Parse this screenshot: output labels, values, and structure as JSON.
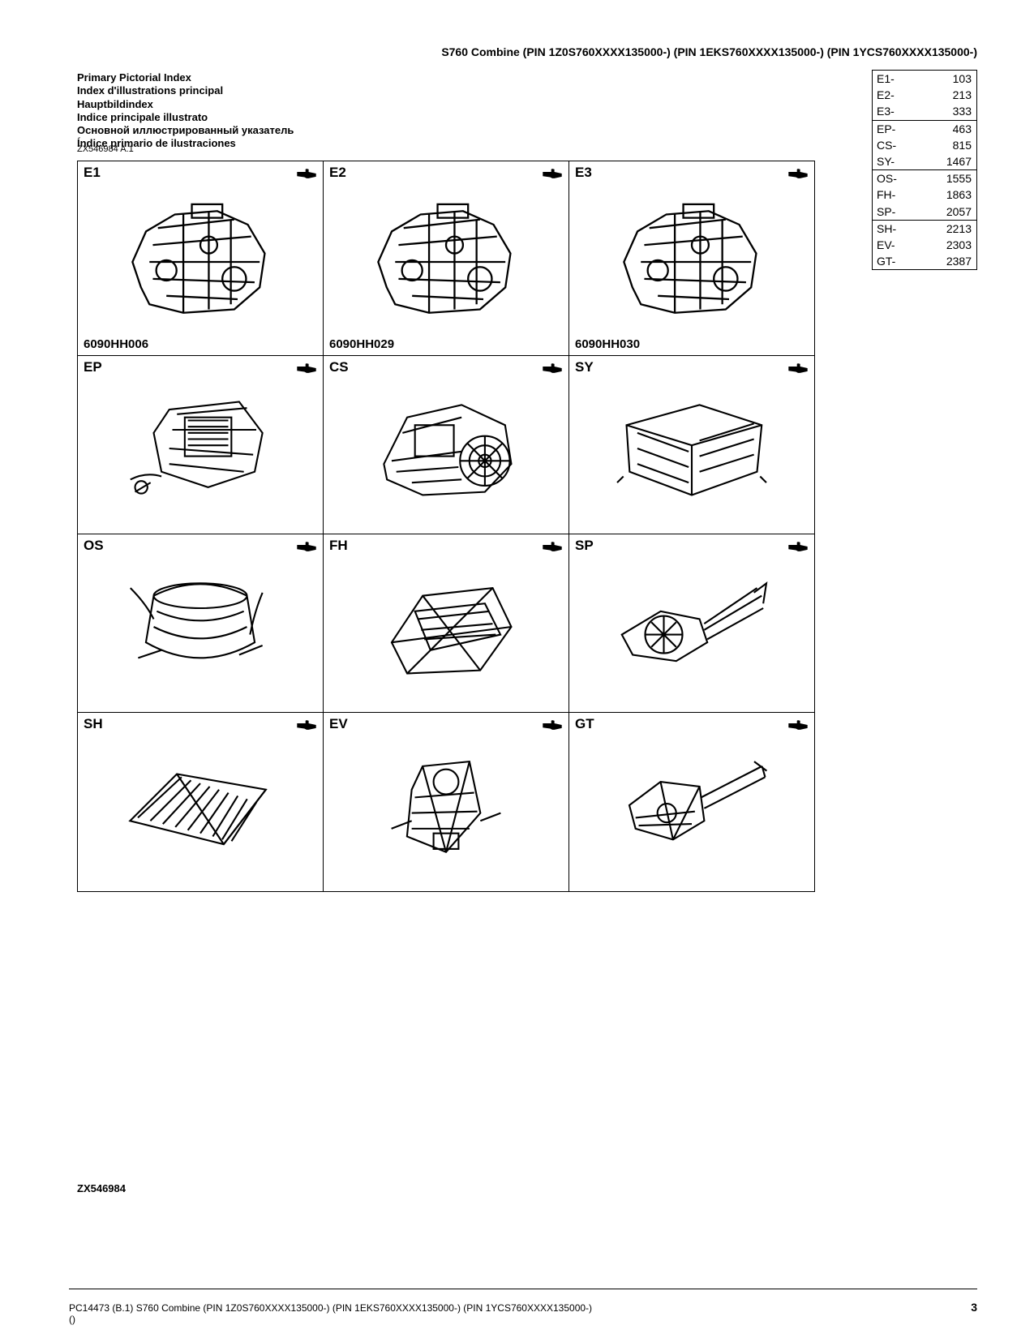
{
  "header": {
    "title": "S760 Combine (PIN 1Z0S760XXXX135000-) (PIN 1EKS760XXXX135000-) (PIN 1YCS760XXXX135000-)"
  },
  "index_titles": [
    "Primary Pictorial Index",
    "Index d'illustrations principal",
    "Hauptbildindex",
    "Indice principale illustrato",
    "Основной иллюстрированный указатель",
    "Índice primario de ilustraciones"
  ],
  "ref_code": "ZX546984 A.1",
  "toc": {
    "groups": [
      [
        {
          "code": "E1-",
          "page": "103"
        },
        {
          "code": "E2-",
          "page": "213"
        },
        {
          "code": "E3-",
          "page": "333"
        }
      ],
      [
        {
          "code": "EP-",
          "page": "463"
        },
        {
          "code": "CS-",
          "page": "815"
        },
        {
          "code": "SY-",
          "page": "1467"
        }
      ],
      [
        {
          "code": "OS-",
          "page": "1555"
        },
        {
          "code": "FH-",
          "page": "1863"
        },
        {
          "code": "SP-",
          "page": "2057"
        }
      ],
      [
        {
          "code": "SH-",
          "page": "2213"
        },
        {
          "code": "EV-",
          "page": "2303"
        },
        {
          "code": "GT-",
          "page": "2387"
        }
      ]
    ]
  },
  "grid": {
    "rows": [
      [
        {
          "code": "E1",
          "sub": "6090HH006",
          "kind": "engine"
        },
        {
          "code": "E2",
          "sub": "6090HH029",
          "kind": "engine"
        },
        {
          "code": "E3",
          "sub": "6090HH030",
          "kind": "engine"
        }
      ],
      [
        {
          "code": "EP",
          "sub": "",
          "kind": "assembly"
        },
        {
          "code": "CS",
          "sub": "",
          "kind": "chassis"
        },
        {
          "code": "SY",
          "sub": "",
          "kind": "body"
        }
      ],
      [
        {
          "code": "OS",
          "sub": "",
          "kind": "tank"
        },
        {
          "code": "FH",
          "sub": "",
          "kind": "frame"
        },
        {
          "code": "SP",
          "sub": "",
          "kind": "spreader"
        }
      ],
      [
        {
          "code": "SH",
          "sub": "",
          "kind": "shaker"
        },
        {
          "code": "EV",
          "sub": "",
          "kind": "elevator"
        },
        {
          "code": "GT",
          "sub": "",
          "kind": "graintank"
        }
      ]
    ]
  },
  "bottom_ref": "ZX546984",
  "footer": {
    "left": "PC14473    (B.1)    S760 Combine (PIN 1Z0S760XXXX135000-) (PIN 1EKS760XXXX135000-) (PIN 1YCS760XXXX135000-)",
    "paren": "()",
    "page": "3"
  },
  "style": {
    "stroke": "#000000",
    "bg": "#ffffff",
    "cell_border": "#000000"
  }
}
